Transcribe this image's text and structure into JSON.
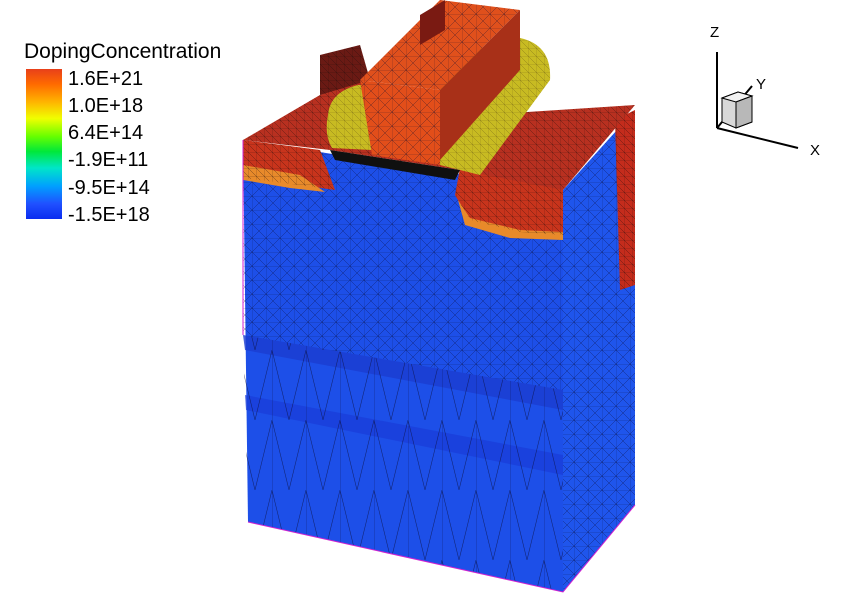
{
  "legend": {
    "title": "DopingConcentration",
    "ticks": [
      "1.6E+21",
      "1.0E+18",
      "6.4E+14",
      "-1.9E+11",
      "-9.5E+14",
      "-1.5E+18"
    ]
  },
  "axes": {
    "z": "Z",
    "y": "Y",
    "x": "X"
  },
  "colors": {
    "substrate": "#1d4fe8",
    "substrate_dark": "#1b3fd0",
    "surface_n": "#c8341c",
    "spacer": "#c8bb22",
    "gate": "#e0501c",
    "junction": "#e88a2a"
  }
}
